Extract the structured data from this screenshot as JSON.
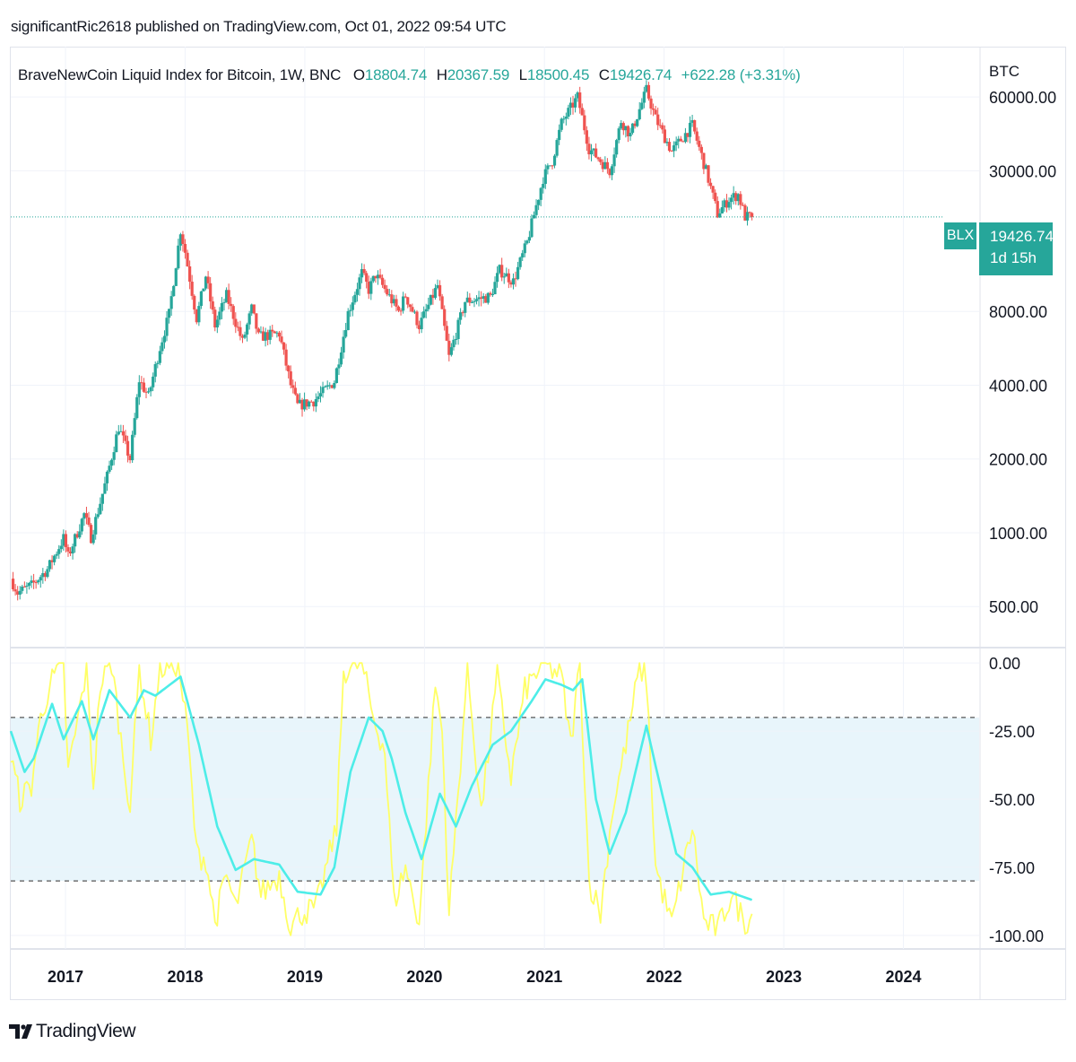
{
  "header": {
    "caption": "significantRic2618 published on TradingView.com, Oct 01, 2022 09:54 UTC"
  },
  "legend": {
    "title": "BraveNewCoin Liquid Index for Bitcoin, 1W, BNC",
    "o_label": "O",
    "o_value": "18804.74",
    "h_label": "H",
    "h_value": "20367.59",
    "l_label": "L",
    "l_value": "18500.45",
    "c_label": "C",
    "c_value": "19426.74",
    "change": "+622.28 (+3.31%)"
  },
  "price_scale": {
    "currency": "BTC"
  },
  "last_price": {
    "symbol": "BLX",
    "value": "19426.74",
    "countdown": "1d 15h"
  },
  "brand": {
    "name": "TradingView",
    "icon": "tradingview-logo-icon"
  },
  "colors": {
    "up": "#26a69a",
    "down": "#ef5350",
    "k_line": "#ffff66",
    "d_line": "#4dede8",
    "band_fill": "#e8f5fb",
    "grid": "#f0f3fa",
    "axis_text": "#131722",
    "price_line": "#26a69a"
  },
  "chart_data": [
    {
      "type": "candlestick",
      "title": "BraveNewCoin Liquid Index for Bitcoin, 1W, BNC",
      "scale": "log",
      "ylim": [
        340,
        90000
      ],
      "xlim": [
        "2016-07-18",
        "2024-08-19"
      ],
      "x_ticks": [
        "2017",
        "2018",
        "2019",
        "2020",
        "2021",
        "2022",
        "2023",
        "2024"
      ],
      "y_ticks": [
        "60000.00",
        "30000.00",
        "8000.00",
        "4000.00",
        "2000.00",
        "1000.00",
        "500.00"
      ],
      "last_close": 19426.74,
      "interval": "1W",
      "anchors": [
        [
          "2016-07-18",
          650
        ],
        [
          "2016-08-08",
          570
        ],
        [
          "2016-09-19",
          610
        ],
        [
          "2016-11-07",
          710
        ],
        [
          "2016-12-26",
          950
        ],
        [
          "2017-01-09",
          800
        ],
        [
          "2017-02-27",
          1190
        ],
        [
          "2017-03-20",
          960
        ],
        [
          "2017-05-08",
          1700
        ],
        [
          "2017-06-12",
          2700
        ],
        [
          "2017-07-17",
          2000
        ],
        [
          "2017-08-14",
          4200
        ],
        [
          "2017-09-11",
          3600
        ],
        [
          "2017-10-16",
          5700
        ],
        [
          "2017-11-13",
          7800
        ],
        [
          "2017-12-18",
          17200
        ],
        [
          "2018-01-01",
          14000
        ],
        [
          "2018-02-05",
          7500
        ],
        [
          "2018-03-05",
          11200
        ],
        [
          "2018-04-02",
          7000
        ],
        [
          "2018-05-07",
          9300
        ],
        [
          "2018-06-25",
          6000
        ],
        [
          "2018-07-23",
          8200
        ],
        [
          "2018-08-13",
          6300
        ],
        [
          "2018-10-15",
          6500
        ],
        [
          "2018-11-19",
          4000
        ],
        [
          "2018-12-10",
          3300
        ],
        [
          "2019-01-28",
          3450
        ],
        [
          "2019-04-01",
          4150
        ],
        [
          "2019-05-13",
          7900
        ],
        [
          "2019-06-24",
          11500
        ],
        [
          "2019-07-15",
          9800
        ],
        [
          "2019-08-05",
          11300
        ],
        [
          "2019-10-14",
          8000
        ],
        [
          "2019-11-04",
          9300
        ],
        [
          "2019-12-16",
          7000
        ],
        [
          "2020-02-10",
          10200
        ],
        [
          "2020-03-16",
          5200
        ],
        [
          "2020-05-04",
          8800
        ],
        [
          "2020-07-20",
          9200
        ],
        [
          "2020-08-17",
          11800
        ],
        [
          "2020-09-28",
          10600
        ],
        [
          "2020-11-09",
          15300
        ],
        [
          "2020-12-28",
          28000
        ],
        [
          "2021-01-25",
          33000
        ],
        [
          "2021-02-22",
          47000
        ],
        [
          "2021-04-12",
          60000
        ],
        [
          "2021-05-17",
          37000
        ],
        [
          "2021-06-21",
          33000
        ],
        [
          "2021-07-19",
          30000
        ],
        [
          "2021-08-23",
          48000
        ],
        [
          "2021-09-20",
          42000
        ],
        [
          "2021-11-08",
          64000
        ],
        [
          "2021-12-06",
          49000
        ],
        [
          "2022-01-24",
          36000
        ],
        [
          "2022-03-28",
          46000
        ],
        [
          "2022-05-09",
          30000
        ],
        [
          "2022-06-13",
          20000
        ],
        [
          "2022-07-18",
          23000
        ],
        [
          "2022-08-15",
          24000
        ],
        [
          "2022-09-05",
          19500
        ],
        [
          "2022-09-26",
          19426.74
        ]
      ]
    },
    {
      "type": "line",
      "scale": "linear",
      "ylim": [
        -105,
        5
      ],
      "y_ticks": [
        "0.00",
        "-25.00",
        "-50.00",
        "-75.00",
        "-100.00"
      ],
      "band": [
        -80,
        -20
      ],
      "series": [
        {
          "role": "fast",
          "anchors": [
            [
              "2016-07-18",
              -35
            ],
            [
              "2016-08-15",
              -50
            ],
            [
              "2016-09-19",
              -45
            ],
            [
              "2016-10-17",
              -20
            ],
            [
              "2016-11-14",
              -8
            ],
            [
              "2016-12-26",
              0
            ],
            [
              "2017-01-09",
              -40
            ],
            [
              "2017-02-06",
              -22
            ],
            [
              "2017-03-06",
              -2
            ],
            [
              "2017-03-27",
              -45
            ],
            [
              "2017-04-17",
              -8
            ],
            [
              "2017-05-22",
              0
            ],
            [
              "2017-06-26",
              -35
            ],
            [
              "2017-07-17",
              -52
            ],
            [
              "2017-08-14",
              -2
            ],
            [
              "2017-09-18",
              -28
            ],
            [
              "2017-10-16",
              -2
            ],
            [
              "2017-12-11",
              0
            ],
            [
              "2018-01-08",
              -25
            ],
            [
              "2018-02-05",
              -70
            ],
            [
              "2018-03-05",
              -72
            ],
            [
              "2018-04-02",
              -95
            ],
            [
              "2018-05-07",
              -78
            ],
            [
              "2018-06-04",
              -90
            ],
            [
              "2018-07-23",
              -65
            ],
            [
              "2018-08-20",
              -85
            ],
            [
              "2018-10-15",
              -78
            ],
            [
              "2018-11-19",
              -97
            ],
            [
              "2018-12-17",
              -92
            ],
            [
              "2019-02-04",
              -90
            ],
            [
              "2019-04-08",
              -60
            ],
            [
              "2019-04-29",
              -3
            ],
            [
              "2019-06-24",
              0
            ],
            [
              "2019-07-29",
              -20
            ],
            [
              "2019-09-02",
              -32
            ],
            [
              "2019-09-30",
              -88
            ],
            [
              "2019-11-04",
              -75
            ],
            [
              "2019-12-16",
              -95
            ],
            [
              "2020-02-03",
              -8
            ],
            [
              "2020-02-24",
              -25
            ],
            [
              "2020-03-16",
              -92
            ],
            [
              "2020-05-11",
              -2
            ],
            [
              "2020-06-22",
              -55
            ],
            [
              "2020-08-10",
              -5
            ],
            [
              "2020-09-21",
              -42
            ],
            [
              "2020-11-02",
              -10
            ],
            [
              "2020-12-28",
              0
            ],
            [
              "2021-02-22",
              -5
            ],
            [
              "2021-03-22",
              -30
            ],
            [
              "2021-04-19",
              0
            ],
            [
              "2021-05-17",
              -80
            ],
            [
              "2021-06-21",
              -92
            ],
            [
              "2021-07-26",
              -55
            ],
            [
              "2021-09-06",
              -30
            ],
            [
              "2021-10-18",
              -2
            ],
            [
              "2021-11-08",
              -5
            ],
            [
              "2021-12-06",
              -75
            ],
            [
              "2022-01-24",
              -96
            ],
            [
              "2022-03-28",
              -60
            ],
            [
              "2022-05-02",
              -95
            ],
            [
              "2022-06-13",
              -98
            ],
            [
              "2022-07-25",
              -85
            ],
            [
              "2022-09-05",
              -95
            ],
            [
              "2022-09-26",
              -93
            ]
          ]
        },
        {
          "role": "slow",
          "anchors": [
            [
              "2016-07-18",
              -25
            ],
            [
              "2016-08-29",
              -40
            ],
            [
              "2016-09-26",
              -35
            ],
            [
              "2016-11-21",
              -15
            ],
            [
              "2016-12-26",
              -28
            ],
            [
              "2017-02-20",
              -14
            ],
            [
              "2017-03-27",
              -28
            ],
            [
              "2017-05-15",
              -10
            ],
            [
              "2017-07-17",
              -20
            ],
            [
              "2017-08-28",
              -10
            ],
            [
              "2017-10-02",
              -12
            ],
            [
              "2017-12-18",
              -5
            ],
            [
              "2018-02-12",
              -30
            ],
            [
              "2018-04-09",
              -60
            ],
            [
              "2018-06-04",
              -76
            ],
            [
              "2018-07-30",
              -72
            ],
            [
              "2018-10-15",
              -74
            ],
            [
              "2018-12-10",
              -84
            ],
            [
              "2019-02-18",
              -85
            ],
            [
              "2019-04-01",
              -75
            ],
            [
              "2019-05-20",
              -40
            ],
            [
              "2019-07-15",
              -20
            ],
            [
              "2019-08-26",
              -25
            ],
            [
              "2019-09-23",
              -35
            ],
            [
              "2019-11-04",
              -55
            ],
            [
              "2019-12-23",
              -72
            ],
            [
              "2020-02-17",
              -48
            ],
            [
              "2020-04-06",
              -60
            ],
            [
              "2020-05-25",
              -45
            ],
            [
              "2020-07-27",
              -30
            ],
            [
              "2020-09-21",
              -25
            ],
            [
              "2020-11-23",
              -14
            ],
            [
              "2021-01-04",
              -6
            ],
            [
              "2021-02-22",
              -8
            ],
            [
              "2021-03-29",
              -10
            ],
            [
              "2021-04-26",
              -6
            ],
            [
              "2021-06-07",
              -50
            ],
            [
              "2021-07-19",
              -70
            ],
            [
              "2021-09-06",
              -55
            ],
            [
              "2021-11-08",
              -23
            ],
            [
              "2021-12-20",
              -45
            ],
            [
              "2022-02-07",
              -70
            ],
            [
              "2022-03-28",
              -75
            ],
            [
              "2022-05-23",
              -85
            ],
            [
              "2022-07-18",
              -84
            ],
            [
              "2022-09-26",
              -87
            ]
          ]
        }
      ]
    }
  ]
}
